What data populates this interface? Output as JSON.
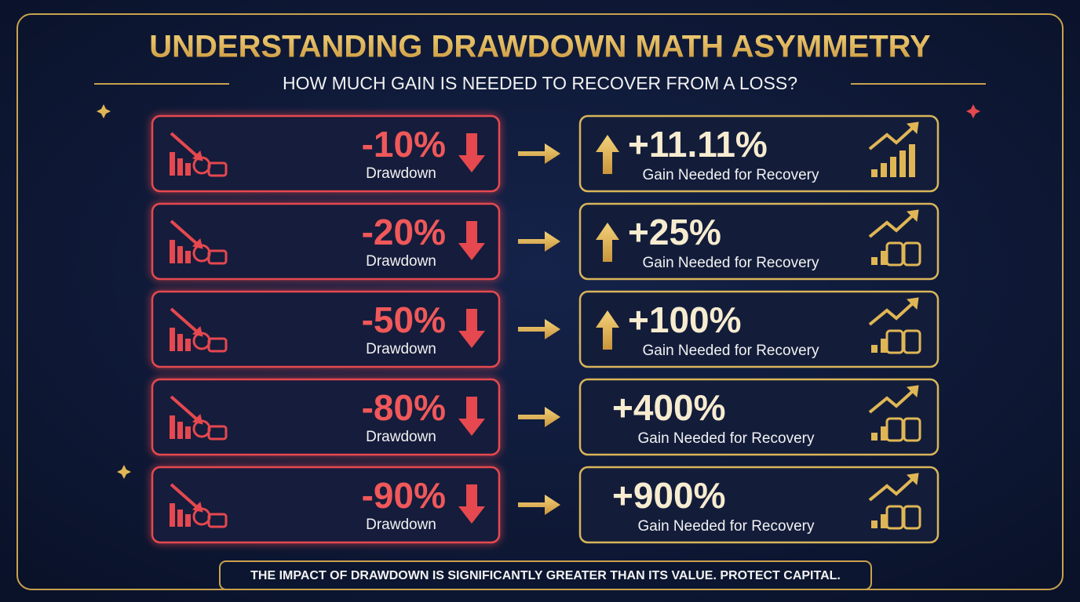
{
  "header": {
    "title": "UNDERSTANDING DRAWDOWN MATH ASYMMETRY",
    "subtitle": "HOW MUCH GAIN IS NEEDED TO RECOVER FROM A LOSS?"
  },
  "rows": [
    {
      "drawdown": "-10%",
      "drawdown_label": "Drawdown",
      "gain": "+11.11%",
      "gain_label": "Gain Needed for Recovery"
    },
    {
      "drawdown": "-20%",
      "drawdown_label": "Drawdown",
      "gain": "+25%",
      "gain_label": "Gain Needed for Recovery"
    },
    {
      "drawdown": "-50%",
      "drawdown_label": "Drawdown",
      "gain": "+100%",
      "gain_label": "Gain Needed for Recovery"
    },
    {
      "drawdown": "-80%",
      "drawdown_label": "Drawdown",
      "gain": "+400%",
      "gain_label": "Gain Needed for Recovery"
    },
    {
      "drawdown": "-90%",
      "drawdown_label": "Drawdown",
      "gain": "+900%",
      "gain_label": "Gain Needed for Recovery"
    }
  ],
  "footer": "THE IMPACT OF DRAWDOWN IS SIGNIFICANTLY GREATER THAN ITS VALUE. PROTECT CAPITAL."
}
